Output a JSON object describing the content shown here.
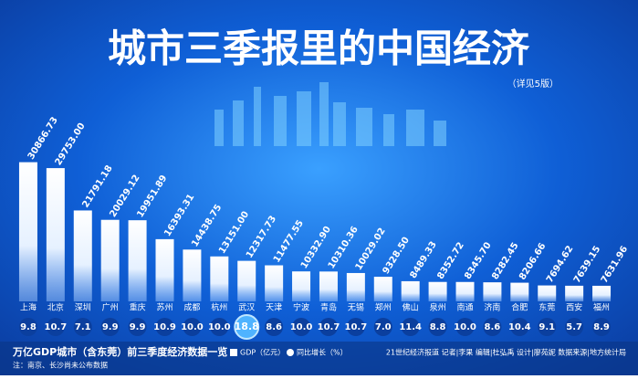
{
  "chart_data": {
    "type": "bar",
    "title": "城市三季报里的中国经济",
    "subtitle": "（详见5版）",
    "caption": "万亿GDP城市（含东莞）前三季度经济数据一览",
    "credits": "21世纪经济报道  记者|李果  编辑|杜弘禹  设计|廖苑妮  数据来源|地方统计局",
    "note": "注：南京、长沙尚未公布数据",
    "categories": [
      "上海",
      "北京",
      "深圳",
      "广州",
      "重庆",
      "苏州",
      "成都",
      "杭州",
      "武汉",
      "天津",
      "宁波",
      "青岛",
      "无锡",
      "郑州",
      "佛山",
      "泉州",
      "南通",
      "济南",
      "合肥",
      "东莞",
      "西安",
      "福州"
    ],
    "series": [
      {
        "name": "GDP（亿元）",
        "color": "#ffffff",
        "values": [
          30866.73,
          29753.0,
          21791.18,
          20029.12,
          19951.89,
          16393.31,
          14438.75,
          13151.0,
          12317.73,
          11477.55,
          10332.9,
          10310.36,
          10029.02,
          9328.5,
          8489.33,
          8352.72,
          8345.7,
          8282.45,
          8206.66,
          7694.62,
          7639.15,
          7631.96
        ],
        "value_labels": [
          "30866.73",
          "29753.00",
          "21791.18",
          "20029.12",
          "19951.89",
          "16393.31",
          "14438.75",
          "13151.00",
          "12317.73",
          "11477.55",
          "10332.90",
          "10310.36",
          "10029.02",
          "9328.50",
          "8489.33",
          "8352.72",
          "8345.70",
          "8282.45",
          "8206.66",
          "7694.62",
          "7639.15",
          "7631.96"
        ]
      },
      {
        "name": "同比增长（%）",
        "color": "#0b3f9e",
        "values": [
          9.8,
          10.7,
          7.1,
          9.9,
          9.9,
          10.9,
          10.0,
          10.0,
          18.8,
          8.6,
          10.0,
          10.7,
          10.7,
          7.0,
          11.4,
          8.8,
          10.0,
          8.6,
          10.4,
          9.1,
          5.7,
          8.9
        ],
        "value_labels": [
          "9.8",
          "10.7",
          "7.1",
          "9.9",
          "9.9",
          "10.9",
          "10.0",
          "10.0",
          "18.8",
          "8.6",
          "10.0",
          "10.7",
          "10.7",
          "7.0",
          "11.4",
          "8.8",
          "10.0",
          "8.6",
          "10.4",
          "9.1",
          "5.7",
          "8.9"
        ]
      }
    ],
    "highlight_index": 8,
    "ylim": [
      4700,
      32000
    ]
  }
}
